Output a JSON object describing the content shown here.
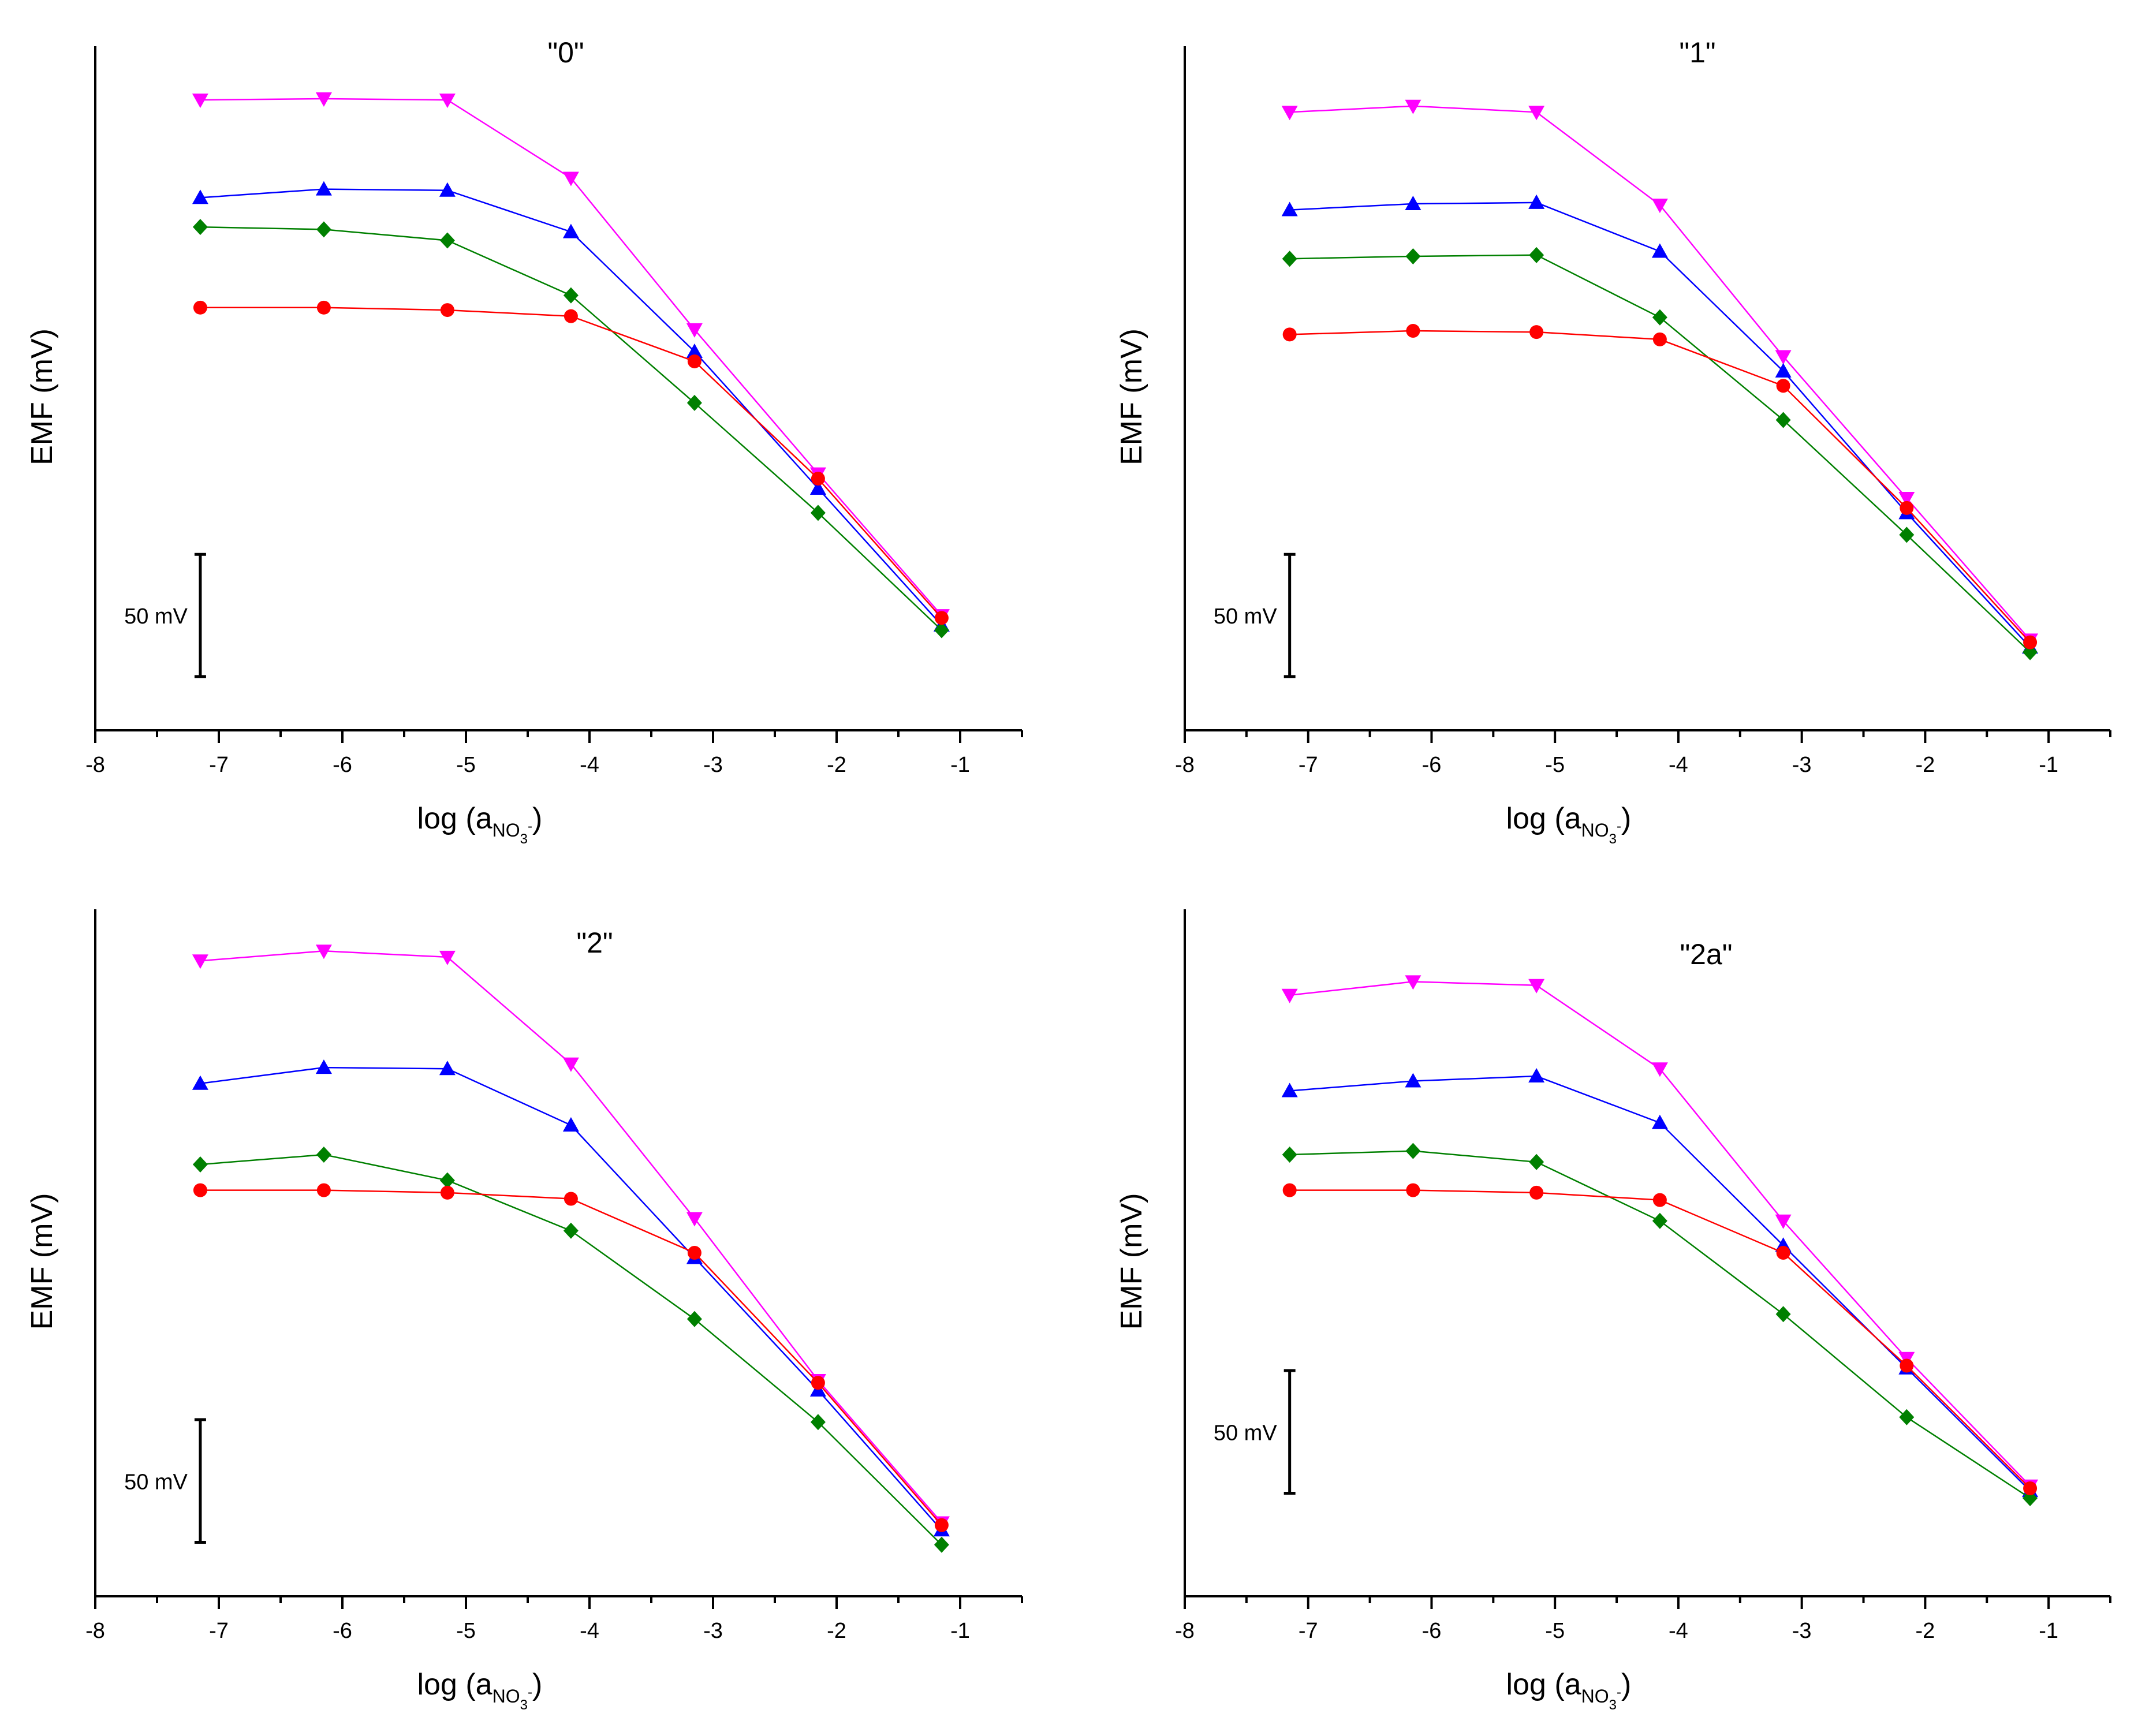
{
  "chart_data": [
    {
      "type": "line",
      "title": "\"0\"",
      "xlabel": "log (a",
      "xlabel_sub": "NO",
      "xlabel_sub2": "3",
      "xlabel_sup": "-",
      "xlabel_close": ")",
      "ylabel": "EMF (mV)",
      "xlim": [
        -8,
        -0.5
      ],
      "xticks": [
        -8,
        -7,
        -6,
        -5,
        -4,
        -3,
        -2,
        -1
      ],
      "xtick_labels": [
        "-8",
        "-7",
        "-6",
        "-5",
        "-4",
        "-3",
        "-2",
        "-1"
      ],
      "ylim": [
        -10,
        270
      ],
      "scale_bar": {
        "label": "50 mV",
        "value": 50,
        "bottom": 12
      },
      "x": [
        -7.15,
        -6.15,
        -5.15,
        -4.15,
        -3.15,
        -2.15,
        -1.15
      ],
      "series": [
        {
          "name": "magenta",
          "color": "#ff00ff",
          "marker": "tri-down",
          "values": [
            248,
            248.5,
            248,
            216,
            154,
            95,
            37
          ]
        },
        {
          "name": "blue",
          "color": "#0000ff",
          "marker": "tri-up",
          "values": [
            208,
            211.5,
            211,
            194,
            145,
            89,
            33
          ]
        },
        {
          "name": "green",
          "color": "#008000",
          "marker": "diamond",
          "values": [
            196,
            195,
            190.5,
            168,
            124,
            79,
            31
          ]
        },
        {
          "name": "red",
          "color": "#ff0000",
          "marker": "circle",
          "values": [
            163,
            163,
            162,
            159.5,
            141,
            93,
            36
          ]
        }
      ]
    },
    {
      "type": "line",
      "title": "\"1\"",
      "xlabel": "log (a",
      "xlabel_sub": "NO",
      "xlabel_sub2": "3",
      "xlabel_sup": "-",
      "xlabel_close": ")",
      "ylabel": "EMF (mV)",
      "xlim": [
        -8,
        -0.5
      ],
      "xticks": [
        -8,
        -7,
        -6,
        -5,
        -4,
        -3,
        -2,
        -1
      ],
      "xtick_labels": [
        "-8",
        "-7",
        "-6",
        "-5",
        "-4",
        "-3",
        "-2",
        "-1"
      ],
      "ylim": [
        -10,
        270
      ],
      "scale_bar": {
        "label": "50 mV",
        "value": 50,
        "bottom": 12
      },
      "x": [
        -7.15,
        -6.15,
        -5.15,
        -4.15,
        -3.15,
        -2.15,
        -1.15
      ],
      "series": [
        {
          "name": "magenta",
          "color": "#ff00ff",
          "marker": "tri-down",
          "values": [
            243,
            245.5,
            243,
            205,
            143,
            85,
            27
          ]
        },
        {
          "name": "blue",
          "color": "#0000ff",
          "marker": "tri-up",
          "values": [
            203,
            205.5,
            206,
            186,
            137,
            79,
            24
          ]
        },
        {
          "name": "green",
          "color": "#008000",
          "marker": "diamond",
          "values": [
            183,
            184,
            184.5,
            159,
            117,
            70,
            22
          ]
        },
        {
          "name": "red",
          "color": "#ff0000",
          "marker": "circle",
          "values": [
            152,
            153.5,
            153,
            150,
            131,
            81,
            26
          ]
        }
      ]
    },
    {
      "type": "line",
      "title": "\"2\"",
      "xlabel": "log (a",
      "xlabel_sub": "NO",
      "xlabel_sub2": "3",
      "xlabel_sup": "-",
      "xlabel_close": ")",
      "ylabel": "EMF (mV)",
      "xlim": [
        -8,
        -0.5
      ],
      "xticks": [
        -8,
        -7,
        -6,
        -5,
        -4,
        -3,
        -2,
        -1
      ],
      "xtick_labels": [
        "-8",
        "-7",
        "-6",
        "-5",
        "-4",
        "-3",
        "-2",
        "-1"
      ],
      "ylim": [
        -10,
        270
      ],
      "scale_bar": {
        "label": "50 mV",
        "value": 50,
        "bottom": 12
      },
      "x": [
        -7.15,
        -6.15,
        -5.15,
        -4.15,
        -3.15,
        -2.15,
        -1.15
      ],
      "series": [
        {
          "name": "magenta",
          "color": "#ff00ff",
          "marker": "tri-down",
          "values": [
            249,
            253,
            250.5,
            207,
            144,
            78,
            20
          ]
        },
        {
          "name": "blue",
          "color": "#0000ff",
          "marker": "tri-up",
          "values": [
            199,
            205.5,
            205,
            182,
            128,
            74,
            17
          ]
        },
        {
          "name": "green",
          "color": "#008000",
          "marker": "diamond",
          "values": [
            166,
            170,
            159.5,
            139,
            103,
            61,
            11
          ]
        },
        {
          "name": "red",
          "color": "#ff0000",
          "marker": "circle",
          "values": [
            155.5,
            155.5,
            154.5,
            152,
            130,
            77,
            19
          ]
        }
      ]
    },
    {
      "type": "line",
      "title": "\"2a\"",
      "xlabel": "log (a",
      "xlabel_sub": "NO",
      "xlabel_sub2": "3",
      "xlabel_sup": "-",
      "xlabel_close": ")",
      "ylabel": "EMF (mV)",
      "xlim": [
        -8,
        -0.5
      ],
      "xticks": [
        -8,
        -7,
        -6,
        -5,
        -4,
        -3,
        -2,
        -1
      ],
      "xtick_labels": [
        "-8",
        "-7",
        "-6",
        "-5",
        "-4",
        "-3",
        "-2",
        "-1"
      ],
      "ylim": [
        -10,
        270
      ],
      "scale_bar": {
        "label": "50 mV",
        "value": 50,
        "bottom": 32
      },
      "x": [
        -7.15,
        -6.15,
        -5.15,
        -4.15,
        -3.15,
        -2.15,
        -1.15
      ],
      "series": [
        {
          "name": "magenta",
          "color": "#ff00ff",
          "marker": "tri-down",
          "values": [
            235,
            240.5,
            239,
            205,
            143,
            87,
            35
          ]
        },
        {
          "name": "blue",
          "color": "#0000ff",
          "marker": "tri-up",
          "values": [
            196,
            200,
            202,
            183,
            133,
            83,
            33
          ]
        },
        {
          "name": "green",
          "color": "#008000",
          "marker": "diamond",
          "values": [
            170,
            171.5,
            167,
            143,
            105,
            63,
            30
          ]
        },
        {
          "name": "red",
          "color": "#ff0000",
          "marker": "circle",
          "values": [
            155.5,
            155.5,
            154.5,
            151.5,
            130,
            84,
            34
          ]
        }
      ]
    }
  ]
}
